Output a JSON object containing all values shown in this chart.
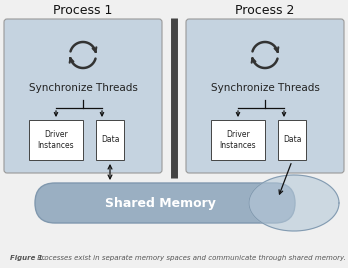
{
  "bg_color": "#f0f0f0",
  "process_box_color": "#c5d3e0",
  "process_box_edge": "#999999",
  "sub_box_color": "#ffffff",
  "sub_box_edge": "#444444",
  "shared_mem_color": "#9aafc2",
  "shared_mem_edge": "#8098ae",
  "shared_mem_overlap_color": "#b5c8d8",
  "shared_mem_overlap_edge": "#8098ae",
  "divider_color": "#444444",
  "arrow_color": "#111111",
  "icon_color": "#333333",
  "title_color": "#111111",
  "label_color": "#222222",
  "caption_bold": "Figure 1.",
  "caption_text": " Processes exist in separate memory spaces and communicate through shared memory.",
  "caption_color": "#555555",
  "process1_title": "Process 1",
  "process2_title": "Process 2",
  "sync_label": "Synchronize Threads",
  "driver_label": "Driver\nInstances",
  "data_label": "Data",
  "shared_mem_label": "Shared Memory",
  "figsize": [
    3.48,
    2.68
  ],
  "dpi": 100
}
